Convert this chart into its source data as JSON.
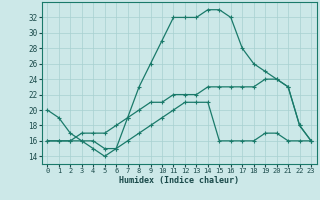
{
  "xlabel": "Humidex (Indice chaleur)",
  "xlim": [
    -0.5,
    23.5
  ],
  "ylim": [
    13,
    34
  ],
  "xticks": [
    0,
    1,
    2,
    3,
    4,
    5,
    6,
    7,
    8,
    9,
    10,
    11,
    12,
    13,
    14,
    15,
    16,
    17,
    18,
    19,
    20,
    21,
    22,
    23
  ],
  "yticks": [
    14,
    16,
    18,
    20,
    22,
    24,
    26,
    28,
    30,
    32
  ],
  "background_color": "#cce8e8",
  "grid_color": "#a8d0d0",
  "line_color": "#1a7a6a",
  "line1_x": [
    0,
    1,
    2,
    3,
    4,
    5,
    6,
    7,
    8,
    9,
    10,
    11,
    12,
    13,
    14,
    15,
    16,
    17,
    18,
    19,
    20,
    21,
    22,
    23
  ],
  "line1_y": [
    20,
    19,
    17,
    16,
    15,
    14,
    15,
    19,
    23,
    26,
    29,
    32,
    32,
    32,
    33,
    33,
    32,
    28,
    26,
    25,
    24,
    23,
    18,
    16
  ],
  "line2_x": [
    0,
    1,
    2,
    3,
    4,
    5,
    6,
    7,
    8,
    9,
    10,
    11,
    12,
    13,
    14,
    15,
    16,
    17,
    18,
    19,
    20,
    21,
    22,
    23
  ],
  "line2_y": [
    16,
    16,
    16,
    16,
    16,
    15,
    15,
    16,
    17,
    18,
    19,
    20,
    21,
    21,
    21,
    16,
    16,
    16,
    16,
    17,
    17,
    16,
    16,
    16
  ],
  "line3_x": [
    0,
    1,
    2,
    3,
    4,
    5,
    6,
    7,
    8,
    9,
    10,
    11,
    12,
    13,
    14,
    15,
    16,
    17,
    18,
    19,
    20,
    21,
    22,
    23
  ],
  "line3_y": [
    16,
    16,
    16,
    17,
    17,
    17,
    18,
    19,
    20,
    21,
    21,
    22,
    22,
    22,
    23,
    23,
    23,
    23,
    23,
    24,
    24,
    23,
    18,
    16
  ]
}
